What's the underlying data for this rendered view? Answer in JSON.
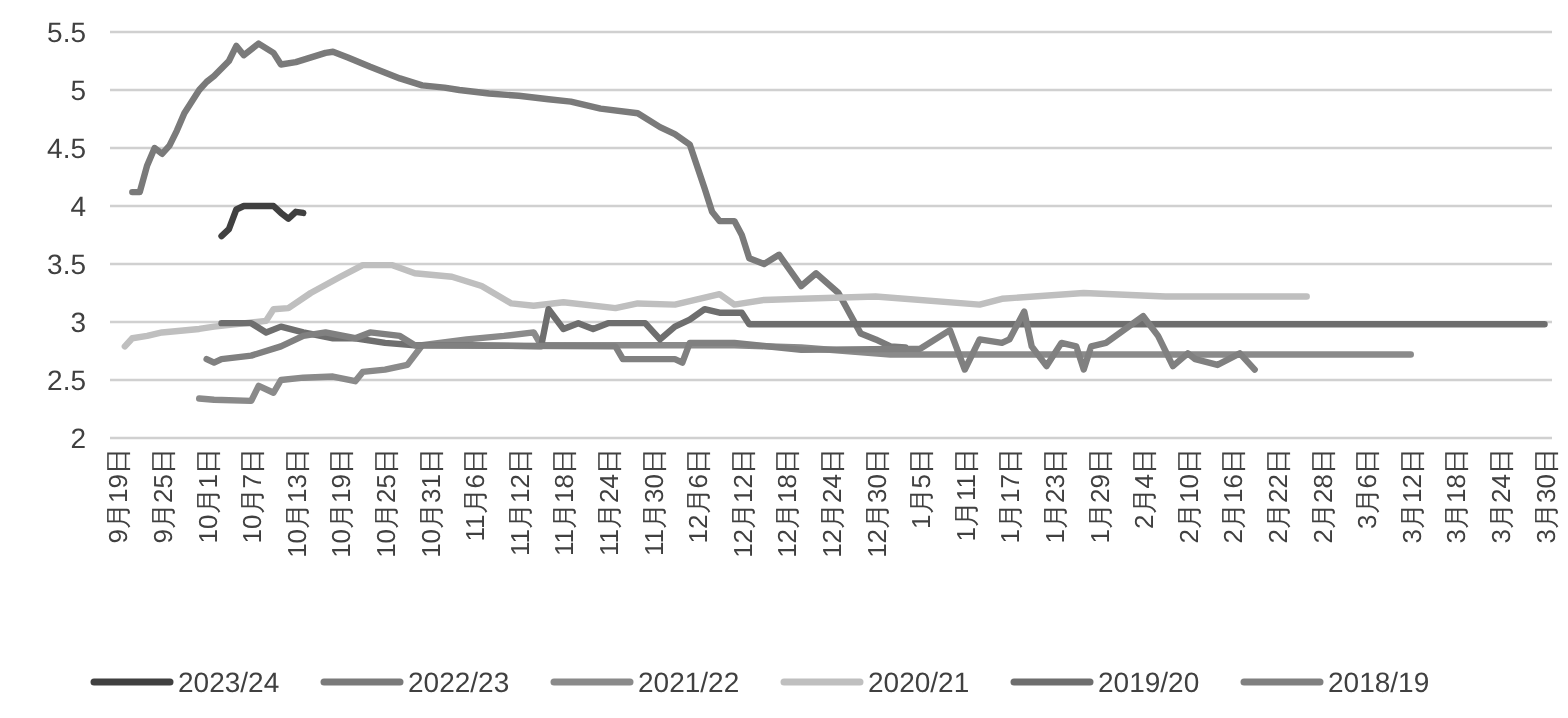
{
  "chart_data": {
    "type": "line",
    "xlim": [
      "2022-09-18",
      "2023-03-31"
    ],
    "xticks": [
      {
        "value": "2022-09-19",
        "label": "9月19日"
      },
      {
        "value": "2022-09-25",
        "label": "9月25日"
      },
      {
        "value": "2022-10-01",
        "label": "10月1日"
      },
      {
        "value": "2022-10-07",
        "label": "10月7日"
      },
      {
        "value": "2022-10-13",
        "label": "10月13日"
      },
      {
        "value": "2022-10-19",
        "label": "10月19日"
      },
      {
        "value": "2022-10-25",
        "label": "10月25日"
      },
      {
        "value": "2022-10-31",
        "label": "10月31日"
      },
      {
        "value": "2022-11-06",
        "label": "11月6日"
      },
      {
        "value": "2022-11-12",
        "label": "11月12日"
      },
      {
        "value": "2022-11-18",
        "label": "11月18日"
      },
      {
        "value": "2022-11-24",
        "label": "11月24日"
      },
      {
        "value": "2022-11-30",
        "label": "11月30日"
      },
      {
        "value": "2022-12-06",
        "label": "12月6日"
      },
      {
        "value": "2022-12-12",
        "label": "12月12日"
      },
      {
        "value": "2022-12-18",
        "label": "12月18日"
      },
      {
        "value": "2022-12-24",
        "label": "12月24日"
      },
      {
        "value": "2022-12-30",
        "label": "12月30日"
      },
      {
        "value": "2023-01-05",
        "label": "1月5日"
      },
      {
        "value": "2023-01-11",
        "label": "1月11日"
      },
      {
        "value": "2023-01-17",
        "label": "1月17日"
      },
      {
        "value": "2023-01-23",
        "label": "1月23日"
      },
      {
        "value": "2023-01-29",
        "label": "1月29日"
      },
      {
        "value": "2023-02-04",
        "label": "2月4日"
      },
      {
        "value": "2023-02-10",
        "label": "2月10日"
      },
      {
        "value": "2023-02-16",
        "label": "2月16日"
      },
      {
        "value": "2023-02-22",
        "label": "2月22日"
      },
      {
        "value": "2023-02-28",
        "label": "2月28日"
      },
      {
        "value": "2023-03-06",
        "label": "3月6日"
      },
      {
        "value": "2023-03-12",
        "label": "3月12日"
      },
      {
        "value": "2023-03-18",
        "label": "3月18日"
      },
      {
        "value": "2023-03-24",
        "label": "3月24日"
      },
      {
        "value": "2023-03-30",
        "label": "3月30日"
      }
    ],
    "ylim": [
      2,
      5.5
    ],
    "yticks": [
      2,
      2.5,
      3,
      3.5,
      4,
      4.5,
      5,
      5.5
    ],
    "grid": "y",
    "legend": "bottom",
    "series": [
      {
        "name": "2023/24",
        "color": "#404040",
        "x": [
          "2022-10-03",
          "2022-10-04",
          "2022-10-05",
          "2022-10-06",
          "2022-10-10",
          "2022-10-11",
          "2022-10-12",
          "2022-10-13",
          "2022-10-14"
        ],
        "values": [
          3.74,
          3.8,
          3.97,
          4.0,
          4.0,
          3.94,
          3.89,
          3.95,
          3.94
        ]
      },
      {
        "name": "2022/23",
        "color": "#7a7a7a",
        "x": [
          "2022-09-21",
          "2022-09-22",
          "2022-09-23",
          "2022-09-24",
          "2022-09-25",
          "2022-09-26",
          "2022-09-27",
          "2022-09-28",
          "2022-09-30",
          "2022-10-01",
          "2022-10-02",
          "2022-10-04",
          "2022-10-05",
          "2022-10-06",
          "2022-10-08",
          "2022-10-10",
          "2022-10-11",
          "2022-10-13",
          "2022-10-17",
          "2022-10-18",
          "2022-10-20",
          "2022-10-23",
          "2022-10-27",
          "2022-10-30",
          "2022-11-02",
          "2022-11-04",
          "2022-11-08",
          "2022-11-12",
          "2022-11-16",
          "2022-11-19",
          "2022-11-23",
          "2022-11-28",
          "2022-12-01",
          "2022-12-03",
          "2022-12-05",
          "2022-12-07",
          "2022-12-08",
          "2022-12-09",
          "2022-12-11",
          "2022-12-12",
          "2022-12-13",
          "2022-12-15",
          "2022-12-17",
          "2022-12-19",
          "2022-12-20",
          "2022-12-22",
          "2022-12-25",
          "2022-12-28",
          "2022-12-30",
          "2023-01-01",
          "2023-01-03"
        ],
        "values": [
          4.12,
          4.12,
          4.35,
          4.5,
          4.45,
          4.52,
          4.65,
          4.8,
          5.0,
          5.07,
          5.12,
          5.25,
          5.38,
          5.3,
          5.4,
          5.32,
          5.22,
          5.24,
          5.32,
          5.33,
          5.28,
          5.2,
          5.1,
          5.04,
          5.02,
          5.0,
          4.97,
          4.95,
          4.92,
          4.9,
          4.84,
          4.8,
          4.68,
          4.62,
          4.53,
          4.15,
          3.95,
          3.87,
          3.87,
          3.75,
          3.55,
          3.5,
          3.58,
          3.4,
          3.31,
          3.42,
          3.25,
          2.9,
          2.85,
          2.79,
          2.78
        ]
      },
      {
        "name": "2021/22",
        "color": "#8a8a8a",
        "x": [
          "2022-09-30",
          "2022-10-02",
          "2022-10-07",
          "2022-10-08",
          "2022-10-10",
          "2022-10-11",
          "2022-10-14",
          "2022-10-18",
          "2022-10-21",
          "2022-10-22",
          "2022-10-25",
          "2022-10-28",
          "2022-10-30",
          "2022-11-05",
          "2022-11-10",
          "2022-11-14",
          "2022-11-15",
          "2022-11-27",
          "2022-12-11",
          "2022-12-20",
          "2023-01-01",
          "2023-03-12"
        ],
        "values": [
          2.34,
          2.33,
          2.32,
          2.45,
          2.39,
          2.5,
          2.52,
          2.53,
          2.49,
          2.57,
          2.59,
          2.63,
          2.8,
          2.85,
          2.88,
          2.91,
          2.8,
          2.8,
          2.8,
          2.78,
          2.72,
          2.72
        ]
      },
      {
        "name": "2020/21",
        "color": "#bfbfbf",
        "x": [
          "2022-09-20",
          "2022-09-21",
          "2022-09-23",
          "2022-09-25",
          "2022-09-30",
          "2022-10-02",
          "2022-10-09",
          "2022-10-10",
          "2022-10-12",
          "2022-10-15",
          "2022-10-19",
          "2022-10-22",
          "2022-10-26",
          "2022-10-29",
          "2022-11-03",
          "2022-11-07",
          "2022-11-11",
          "2022-11-14",
          "2022-11-18",
          "2022-11-25",
          "2022-11-28",
          "2022-12-03",
          "2022-12-09",
          "2022-12-11",
          "2022-12-15",
          "2022-12-20",
          "2022-12-30",
          "2023-01-13",
          "2023-01-16",
          "2023-01-27",
          "2023-02-07",
          "2023-02-26"
        ],
        "values": [
          2.79,
          2.86,
          2.88,
          2.91,
          2.94,
          2.96,
          3.01,
          3.11,
          3.12,
          3.25,
          3.39,
          3.49,
          3.49,
          3.42,
          3.39,
          3.31,
          3.16,
          3.14,
          3.17,
          3.12,
          3.16,
          3.15,
          3.24,
          3.15,
          3.19,
          3.2,
          3.22,
          3.15,
          3.2,
          3.25,
          3.22,
          3.22
        ]
      },
      {
        "name": "2019/20",
        "color": "#6e6e6e",
        "x": [
          "2022-10-03",
          "2022-10-07",
          "2022-10-09",
          "2022-10-11",
          "2022-10-14",
          "2022-10-18",
          "2022-10-21",
          "2022-10-25",
          "2022-10-29",
          "2022-11-05",
          "2022-11-15",
          "2022-11-16",
          "2022-11-18",
          "2022-11-20",
          "2022-11-22",
          "2022-11-24",
          "2022-11-29",
          "2022-12-01",
          "2022-12-03",
          "2022-12-05",
          "2022-12-07",
          "2022-12-09",
          "2022-12-12",
          "2022-12-13",
          "2023-03-30"
        ],
        "values": [
          2.99,
          2.99,
          2.91,
          2.96,
          2.91,
          2.86,
          2.86,
          2.82,
          2.8,
          2.8,
          2.79,
          3.11,
          2.94,
          2.99,
          2.94,
          2.99,
          2.99,
          2.85,
          2.96,
          3.02,
          3.11,
          3.08,
          3.08,
          2.98,
          2.98
        ]
      },
      {
        "name": "2018/19",
        "color": "#808080",
        "x": [
          "2022-10-01",
          "2022-10-02",
          "2022-10-03",
          "2022-10-07",
          "2022-10-11",
          "2022-10-14",
          "2022-10-17",
          "2022-10-21",
          "2022-10-23",
          "2022-10-27",
          "2022-10-29",
          "2022-11-25",
          "2022-11-26",
          "2022-12-03",
          "2022-12-04",
          "2022-12-05",
          "2022-12-11",
          "2022-12-20",
          "2023-01-05",
          "2023-01-09",
          "2023-01-11",
          "2023-01-13",
          "2023-01-16",
          "2023-01-17",
          "2023-01-19",
          "2023-01-20",
          "2023-01-22",
          "2023-01-24",
          "2023-01-26",
          "2023-01-27",
          "2023-01-28",
          "2023-01-30",
          "2023-02-04",
          "2023-02-06",
          "2023-02-08",
          "2023-02-10",
          "2023-02-11",
          "2023-02-14",
          "2023-02-17",
          "2023-02-19"
        ],
        "values": [
          2.68,
          2.65,
          2.68,
          2.71,
          2.79,
          2.88,
          2.91,
          2.86,
          2.91,
          2.88,
          2.8,
          2.79,
          2.68,
          2.68,
          2.65,
          2.82,
          2.82,
          2.76,
          2.77,
          2.93,
          2.59,
          2.85,
          2.82,
          2.85,
          3.09,
          2.79,
          2.62,
          2.82,
          2.79,
          2.59,
          2.79,
          2.82,
          3.05,
          2.88,
          2.62,
          2.73,
          2.68,
          2.63,
          2.73,
          2.59
        ]
      }
    ]
  }
}
